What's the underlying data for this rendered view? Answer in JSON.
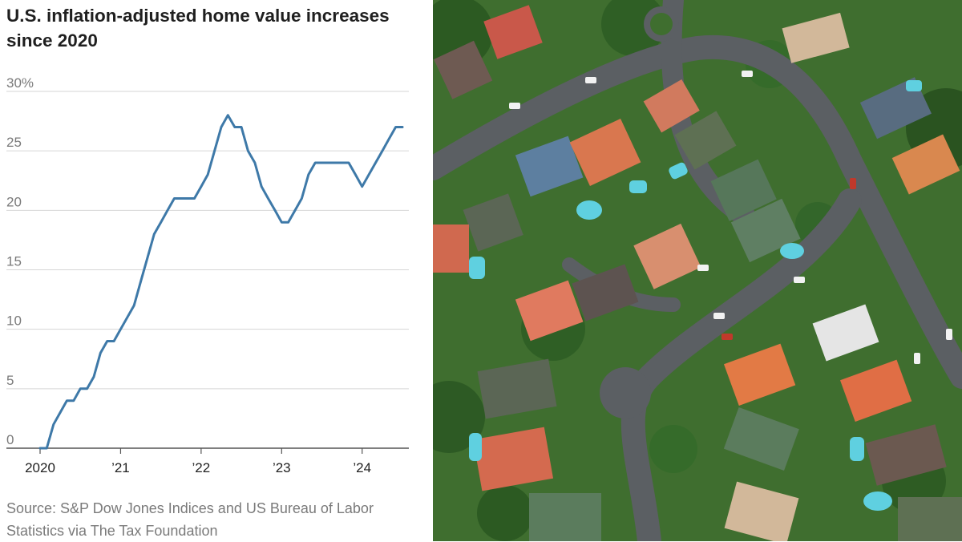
{
  "title": "U.S. inflation-adjusted home value increases since 2020",
  "source": "Source: S&P Dow Jones Indices and US Bureau of Labor Statistics via The Tax Foundation",
  "colors": {
    "line": "#3e79a8",
    "grid": "#d6d6d6",
    "axis": "#555555",
    "text": "#1f1f1f",
    "muted": "#7a7a7a"
  },
  "photo": {
    "subject": "aerial view of suburban residential neighborhood"
  },
  "chart_data": {
    "type": "line",
    "title": "U.S. inflation-adjusted home value increases since 2020",
    "xlabel": "",
    "ylabel": "",
    "xlim": [
      2020.0,
      2024.58
    ],
    "ylim": [
      0,
      30
    ],
    "grid": true,
    "legend": "none",
    "y_ticks": [
      {
        "value": 30,
        "label": "30%"
      },
      {
        "value": 25,
        "label": "25"
      },
      {
        "value": 20,
        "label": "20"
      },
      {
        "value": 15,
        "label": "15"
      },
      {
        "value": 10,
        "label": "10"
      },
      {
        "value": 5,
        "label": "5"
      },
      {
        "value": 0,
        "label": "0"
      }
    ],
    "x_ticks": [
      {
        "value": 2020,
        "label": "2020"
      },
      {
        "value": 2021,
        "label": "’21"
      },
      {
        "value": 2022,
        "label": "’22"
      },
      {
        "value": 2023,
        "label": "’23"
      },
      {
        "value": 2024,
        "label": "’24"
      }
    ],
    "series": [
      {
        "points": [
          [
            2020.0,
            0
          ],
          [
            2020.083,
            0
          ],
          [
            2020.167,
            2
          ],
          [
            2020.25,
            3
          ],
          [
            2020.333,
            4
          ],
          [
            2020.417,
            4
          ],
          [
            2020.5,
            5
          ],
          [
            2020.583,
            5
          ],
          [
            2020.667,
            6
          ],
          [
            2020.75,
            8
          ],
          [
            2020.833,
            9
          ],
          [
            2020.917,
            9
          ],
          [
            2021.0,
            10
          ],
          [
            2021.083,
            11
          ],
          [
            2021.167,
            12
          ],
          [
            2021.25,
            14
          ],
          [
            2021.333,
            16
          ],
          [
            2021.417,
            18
          ],
          [
            2021.5,
            19
          ],
          [
            2021.583,
            20
          ],
          [
            2021.667,
            21
          ],
          [
            2021.75,
            21
          ],
          [
            2021.833,
            21
          ],
          [
            2021.917,
            21
          ],
          [
            2022.0,
            22
          ],
          [
            2022.083,
            23
          ],
          [
            2022.167,
            25
          ],
          [
            2022.25,
            27
          ],
          [
            2022.333,
            28
          ],
          [
            2022.417,
            27
          ],
          [
            2022.5,
            27
          ],
          [
            2022.583,
            25
          ],
          [
            2022.667,
            24
          ],
          [
            2022.75,
            22
          ],
          [
            2022.833,
            21
          ],
          [
            2022.917,
            20
          ],
          [
            2023.0,
            19
          ],
          [
            2023.083,
            19
          ],
          [
            2023.167,
            20
          ],
          [
            2023.25,
            21
          ],
          [
            2023.333,
            23
          ],
          [
            2023.417,
            24
          ],
          [
            2023.5,
            24
          ],
          [
            2023.583,
            24
          ],
          [
            2023.667,
            24
          ],
          [
            2023.75,
            24
          ],
          [
            2023.833,
            24
          ],
          [
            2023.917,
            23
          ],
          [
            2024.0,
            22
          ],
          [
            2024.083,
            23
          ],
          [
            2024.167,
            24
          ],
          [
            2024.25,
            25
          ],
          [
            2024.333,
            26
          ],
          [
            2024.417,
            27
          ],
          [
            2024.5,
            27
          ]
        ]
      }
    ]
  }
}
